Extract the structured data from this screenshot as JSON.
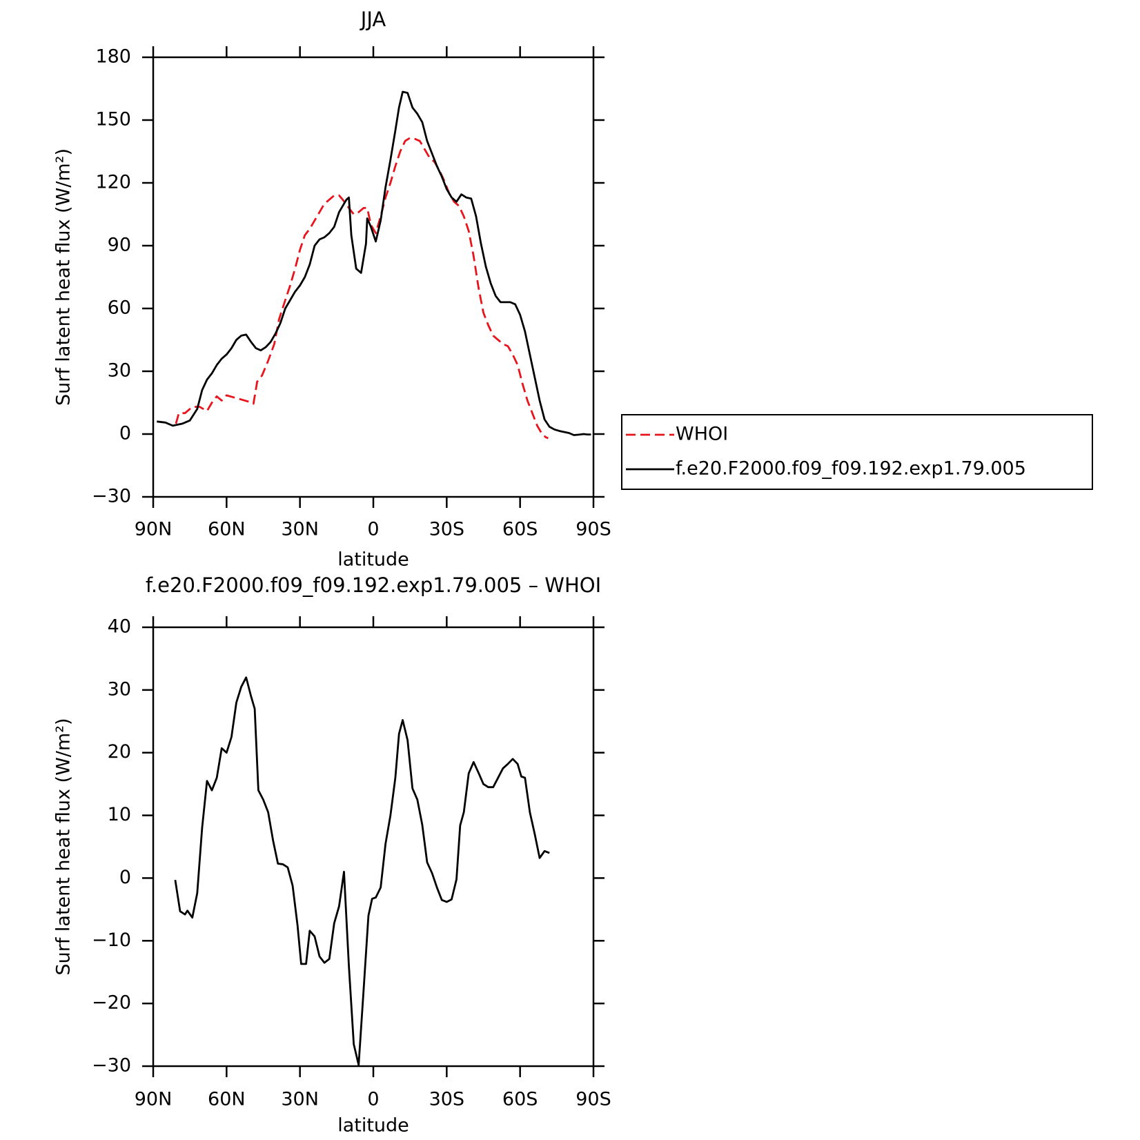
{
  "chart_data": [
    {
      "type": "line",
      "title": "JJA",
      "xlabel": "latitude",
      "ylabel": "Surf latent heat flux (W/m²)",
      "xlim": [
        90,
        -90
      ],
      "xticks": [
        {
          "value": 90,
          "label": "90N"
        },
        {
          "value": 60,
          "label": "60N"
        },
        {
          "value": 30,
          "label": "30N"
        },
        0,
        {
          "value": -30,
          "label": "30S"
        },
        {
          "value": -60,
          "label": "60S"
        },
        {
          "value": -90,
          "label": "90S"
        }
      ],
      "ylim": [
        -30,
        180
      ],
      "yticks": [
        {
          "value": -30,
          "label": "−30"
        },
        0,
        30,
        60,
        90,
        120,
        150,
        180
      ],
      "legend": "right",
      "series": [
        {
          "name": "WHOI",
          "color": "#e8141c",
          "line_style": "dashed",
          "x": [
            80.7,
            79.5,
            77,
            74,
            71,
            68,
            66,
            64,
            62,
            60,
            57,
            54,
            51,
            49,
            47.5,
            45.5,
            43,
            40.5,
            38.5,
            36,
            34,
            32,
            30,
            28,
            26,
            24,
            22,
            20,
            18,
            16,
            14,
            12.5,
            10,
            8,
            6,
            4,
            2.5,
            1,
            -1,
            -3,
            -5,
            -7,
            -9,
            -11,
            -13,
            -15,
            -17,
            -19,
            -21,
            -23,
            -25,
            -27,
            -29,
            -31,
            -33,
            -35,
            -37,
            -39,
            -41,
            -43,
            -45,
            -47,
            -49,
            -51,
            -53,
            -55,
            -57,
            -59,
            -61,
            -63,
            -65,
            -67,
            -69,
            -70.5,
            -71.5
          ],
          "values": [
            5,
            10,
            10,
            13,
            13,
            11,
            15,
            18,
            16,
            18.5,
            17.5,
            16.5,
            15.5,
            14.5,
            25,
            28,
            35,
            43,
            55,
            64,
            71,
            79,
            88,
            95,
            98,
            102,
            106,
            110,
            112,
            114,
            114,
            112,
            108,
            105,
            106,
            108,
            108,
            100,
            96,
            104,
            113,
            120,
            128,
            135,
            140,
            141.5,
            141,
            140,
            136,
            132,
            130,
            126,
            121,
            115,
            111,
            109,
            104,
            97,
            85,
            70,
            58,
            52,
            47,
            45,
            43,
            42,
            38,
            33,
            24,
            16,
            10,
            4,
            0,
            -1.5,
            -2
          ]
        },
        {
          "name": "f.e20.F2000.f09_f09.192.exp1.79.005",
          "color": "#000000",
          "line_style": "solid",
          "x": [
            88.5,
            85,
            82,
            78,
            75,
            72,
            70,
            68,
            66,
            64,
            62,
            60,
            58,
            56,
            54,
            52,
            50,
            48,
            46,
            44,
            42,
            40,
            38,
            36,
            34,
            32,
            30,
            28,
            26,
            24,
            22,
            20,
            18,
            16,
            14,
            12,
            11,
            10,
            9,
            7,
            5,
            3,
            2.5,
            1,
            -1,
            -3,
            -5,
            -7,
            -9,
            -10.5,
            -12,
            -14,
            -16,
            -18,
            -20,
            -22,
            -24,
            -26,
            -28,
            -30,
            -32,
            -34,
            -36,
            -38,
            -40,
            -42,
            -44,
            -46,
            -48,
            -50,
            -52,
            -54,
            -56,
            -58,
            -60,
            -62,
            -64,
            -66,
            -68,
            -70,
            -72,
            -74,
            -76,
            -78,
            -80,
            -82,
            -84,
            -86,
            -87.5,
            -89
          ],
          "values": [
            6,
            5.5,
            4,
            5,
            6.5,
            12,
            21,
            26,
            29,
            33,
            36,
            38,
            41,
            45,
            47,
            47.5,
            44,
            41,
            40,
            41.5,
            44,
            48,
            53,
            60,
            64,
            68,
            71,
            75,
            81,
            90,
            93,
            94,
            96,
            99,
            106,
            110,
            112,
            113,
            95,
            79,
            77,
            91,
            103,
            99,
            92,
            102,
            118,
            131,
            145,
            156,
            163.5,
            163,
            156,
            153,
            149,
            140,
            134,
            128,
            123,
            117,
            113,
            111,
            114.5,
            113,
            112.5,
            104,
            91,
            80,
            72,
            66,
            63,
            63,
            63,
            62,
            57,
            49,
            38,
            27,
            16,
            7,
            3.5,
            2.2,
            1.5,
            1,
            0.5,
            -0.5,
            -0.3,
            0,
            -0.2,
            -0.2
          ]
        }
      ]
    },
    {
      "type": "line",
      "title": "f.e20.F2000.f09_f09.192.exp1.79.005 – WHOI",
      "xlabel": "latitude",
      "ylabel": "Surf latent heat flux (W/m²)",
      "xlim": [
        90,
        -90
      ],
      "xticks": [
        {
          "value": 90,
          "label": "90N"
        },
        {
          "value": 60,
          "label": "60N"
        },
        {
          "value": 30,
          "label": "30N"
        },
        0,
        {
          "value": -30,
          "label": "30S"
        },
        {
          "value": -60,
          "label": "60S"
        },
        {
          "value": -90,
          "label": "90S"
        }
      ],
      "ylim": [
        -30,
        40
      ],
      "yticks": [
        {
          "value": -30,
          "label": "−30"
        },
        {
          "value": -20,
          "label": "−20"
        },
        {
          "value": -10,
          "label": "−10"
        },
        0,
        10,
        20,
        30,
        40
      ],
      "series": [
        {
          "color": "#000000",
          "line_style": "solid",
          "x": [
            81,
            79,
            77,
            76,
            74,
            72,
            70,
            68,
            66,
            64,
            62,
            60,
            58,
            56,
            54,
            52,
            50,
            48.5,
            47,
            45,
            43,
            41,
            39,
            37,
            35,
            33,
            31,
            29.5,
            27.5,
            26,
            24,
            22,
            20,
            18,
            16,
            14,
            12,
            10,
            8,
            6,
            4,
            2,
            0.5,
            -1,
            -3,
            -5,
            -7,
            -9,
            -10.5,
            -12,
            -14,
            -16,
            -18,
            -20,
            -22,
            -24,
            -26,
            -28,
            -30,
            -32,
            -34,
            -35.5,
            -37,
            -39,
            -41,
            -43,
            -45,
            -47,
            -49,
            -51,
            -53,
            -55,
            -57,
            -59,
            -60.5,
            -62,
            -64,
            -66,
            -68,
            -70,
            -72
          ],
          "values": [
            -0.3,
            -5.3,
            -5.8,
            -5.2,
            -6.3,
            -2.4,
            8,
            15.5,
            14,
            16,
            20.7,
            20,
            22.5,
            28,
            30.5,
            32,
            29,
            27,
            14,
            12.5,
            10.5,
            6,
            2.3,
            2.2,
            1.7,
            -1.2,
            -7.5,
            -13.7,
            -13.7,
            -8.4,
            -9.3,
            -12.5,
            -13.5,
            -12.9,
            -7.2,
            -4.5,
            1,
            -14,
            -26.5,
            -29.8,
            -18,
            -6,
            -3.3,
            -3.1,
            -1.5,
            5.5,
            10,
            16,
            23,
            25.2,
            22,
            14.3,
            12.5,
            8.5,
            2.5,
            0.8,
            -1.5,
            -3.5,
            -3.8,
            -3.4,
            -0.2,
            8.4,
            10.5,
            16.7,
            18.5,
            16.8,
            15,
            14.5,
            14.5,
            16,
            17.5,
            18.2,
            19,
            18.2,
            16.2,
            16,
            10.5,
            7,
            3.2,
            4.3,
            4
          ]
        }
      ]
    }
  ]
}
